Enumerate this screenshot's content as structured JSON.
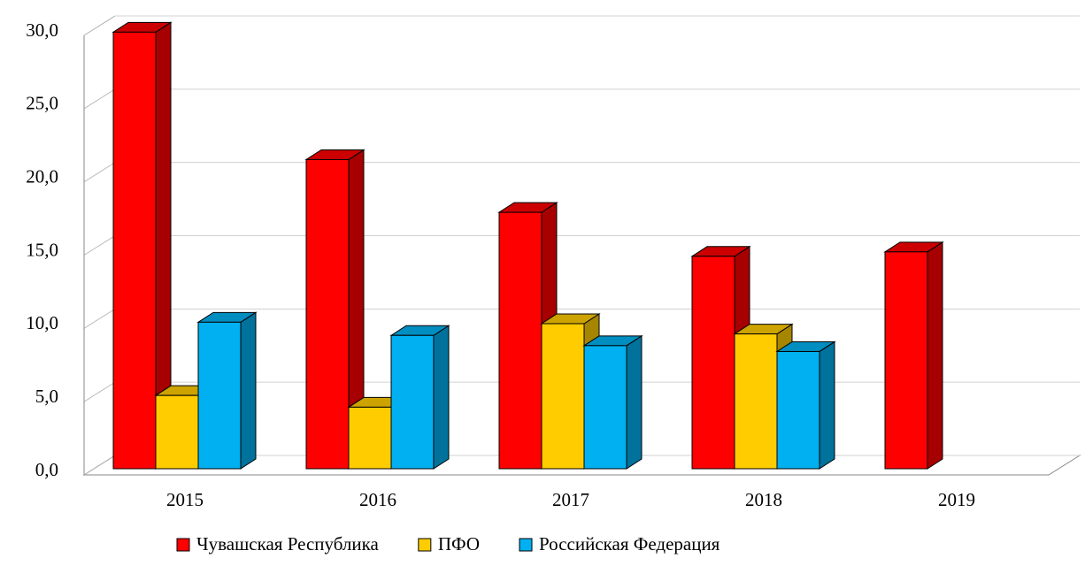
{
  "chart_data": {
    "type": "bar3d",
    "categories": [
      "2015",
      "2016",
      "2017",
      "2018",
      "2019"
    ],
    "series": [
      {
        "name": "Чувашская Республика",
        "color": "#ff0000",
        "values": [
          29.8,
          21.1,
          17.5,
          14.5,
          14.8
        ]
      },
      {
        "name": "ПФО",
        "color": "#ffcc00",
        "values": [
          5.0,
          4.2,
          9.9,
          9.2,
          null
        ]
      },
      {
        "name": "Российская Федерация",
        "color": "#00b0f0",
        "values": [
          10.0,
          9.1,
          8.4,
          8.0,
          null
        ]
      }
    ],
    "ylim": [
      0,
      30
    ],
    "yticks": [
      {
        "value": 0,
        "label": "0,0"
      },
      {
        "value": 5,
        "label": "5,0"
      },
      {
        "value": 10,
        "label": "10,0"
      },
      {
        "value": 15,
        "label": "15,0"
      },
      {
        "value": 20,
        "label": "20,0"
      },
      {
        "value": 25,
        "label": "25,0"
      },
      {
        "value": 30,
        "label": "30,0"
      }
    ],
    "grid": true,
    "legend": "bottom"
  }
}
